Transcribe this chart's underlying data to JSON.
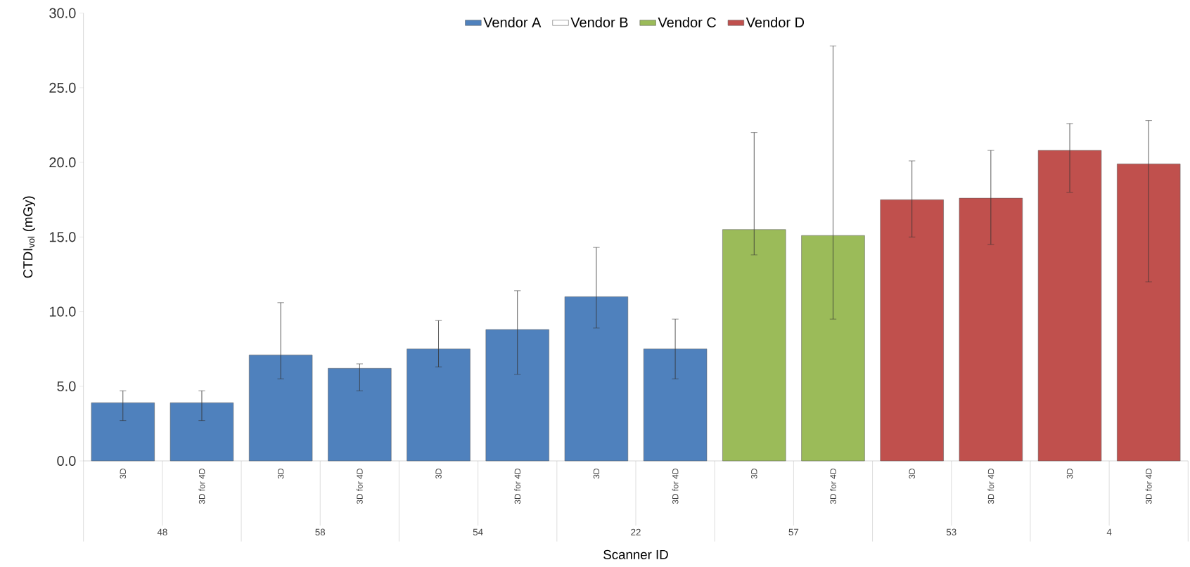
{
  "chart_data": {
    "type": "bar",
    "xlabel": "Scanner ID",
    "ylabel": "CTDI$_{vol}$ (mGy)",
    "categories": [
      "3D",
      "3D for 4D",
      "3D",
      "3D for 4D",
      "3D",
      "3D for 4D",
      "3D",
      "3D for 4D",
      "3D",
      "3D for 4D",
      "3D",
      "3D for 4D",
      "3D",
      "3D for 4D"
    ],
    "annotations": [
      "48",
      "58",
      "54",
      "22",
      "57",
      "53",
      "4"
    ],
    "series": [
      {
        "name": "Vendor A",
        "color": "#4f81bd",
        "values": [
          3.9,
          3.9,
          7.1,
          6.2,
          7.5,
          8.8,
          11.0,
          7.5,
          null,
          null,
          null,
          null,
          null,
          null
        ],
        "errors": [
          [
            2.7,
            4.7
          ],
          [
            2.7,
            4.7
          ],
          [
            5.5,
            10.6
          ],
          [
            4.7,
            6.5
          ],
          [
            6.3,
            9.4
          ],
          [
            5.8,
            11.4
          ],
          [
            8.9,
            14.3
          ],
          [
            5.5,
            9.5
          ],
          null,
          null,
          null,
          null,
          null,
          null
        ]
      },
      {
        "name": "Vendor B",
        "color": "#ffffff",
        "values": [
          null,
          null,
          null,
          null,
          null,
          null,
          null,
          null,
          null,
          null,
          null,
          null,
          null,
          null
        ]
      },
      {
        "name": "Vendor C",
        "color": "#9bbb59",
        "values": [
          null,
          null,
          null,
          null,
          null,
          null,
          null,
          null,
          15.5,
          15.1,
          null,
          null,
          null,
          null
        ],
        "errors": [
          null,
          null,
          null,
          null,
          null,
          null,
          null,
          null,
          [
            13.8,
            22.0
          ],
          [
            9.5,
            27.8
          ],
          null,
          null,
          null,
          null
        ]
      },
      {
        "name": "Vendor D",
        "color": "#c0504d",
        "values": [
          null,
          null,
          null,
          null,
          null,
          null,
          null,
          null,
          null,
          null,
          17.5,
          17.6,
          20.8,
          19.9
        ],
        "errors": [
          null,
          null,
          null,
          null,
          null,
          null,
          null,
          null,
          null,
          null,
          [
            15.0,
            20.1
          ],
          [
            14.5,
            20.8
          ],
          [
            18.0,
            22.6
          ],
          [
            12.0,
            22.8
          ]
        ]
      }
    ],
    "ylim": [
      0,
      30
    ],
    "yticks": [
      {
        "value": 0,
        "label": "0.0"
      },
      {
        "value": 5,
        "label": "5.0"
      },
      {
        "value": 10,
        "label": "10.0"
      },
      {
        "value": 15,
        "label": "15.0"
      },
      {
        "value": 20,
        "label": "20.0"
      },
      {
        "value": 25,
        "label": "25.0"
      },
      {
        "value": 30,
        "label": "30.0"
      }
    ],
    "legend": "top"
  }
}
